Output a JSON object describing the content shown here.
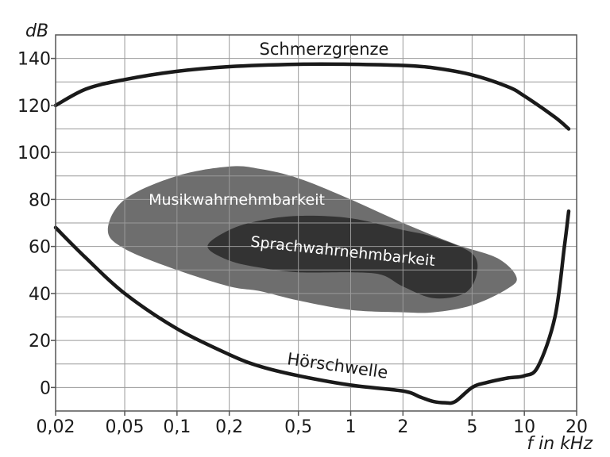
{
  "chart_data": {
    "type": "area",
    "xscale": "log",
    "xlabel": "f in kHz",
    "ylabel": "dB",
    "xlim": [
      0.02,
      20
    ],
    "ylim": [
      -10,
      150
    ],
    "grid": true,
    "x_ticks": [
      0.02,
      0.05,
      0.1,
      0.2,
      0.5,
      1,
      2,
      5,
      10,
      20
    ],
    "x_tick_labels": [
      "0,02",
      "0,05",
      "0,1",
      "0,2",
      "0,5",
      "1",
      "2",
      "5",
      "10",
      "20"
    ],
    "y_ticks": [
      0,
      20,
      40,
      60,
      80,
      100,
      120,
      140
    ],
    "y_tick_labels": [
      "0",
      "20",
      "40",
      "60",
      "80",
      "100",
      "120",
      "140"
    ],
    "series": [
      {
        "name": "Schmerzgrenze",
        "kind": "line",
        "x": [
          0.02,
          0.03,
          0.05,
          0.1,
          0.2,
          0.5,
          1,
          2,
          3,
          5,
          8,
          10,
          15,
          18
        ],
        "y": [
          120,
          127,
          131,
          134.5,
          136.5,
          137.5,
          137.5,
          137,
          136,
          133,
          128,
          124,
          115,
          110
        ]
      },
      {
        "name": "Hörschwelle",
        "kind": "line",
        "x": [
          0.02,
          0.03,
          0.05,
          0.1,
          0.2,
          0.3,
          0.5,
          1,
          2,
          2.5,
          3,
          3.5,
          4,
          5,
          6,
          8,
          10,
          12,
          15,
          17,
          18
        ],
        "y": [
          68,
          55,
          40,
          25,
          14,
          9,
          5,
          1,
          -1.5,
          -4,
          -6,
          -6.5,
          -6,
          0,
          2,
          4,
          5,
          9,
          30,
          60,
          75
        ]
      },
      {
        "name": "Musikwahrnehmbarkeit",
        "kind": "region",
        "x": [
          0.04,
          0.05,
          0.1,
          0.2,
          0.3,
          0.5,
          1,
          2,
          4,
          7,
          9,
          8,
          5,
          3,
          2,
          1,
          0.5,
          0.3,
          0.2,
          0.1,
          0.05,
          0.04
        ],
        "y": [
          67,
          80,
          90,
          94,
          93,
          89,
          80,
          70,
          61,
          55,
          47,
          42,
          35,
          32,
          32,
          33,
          37,
          41,
          43,
          50,
          59,
          67
        ]
      },
      {
        "name": "Sprachwahrnehmbarkeit",
        "kind": "region",
        "x": [
          0.15,
          0.2,
          0.3,
          0.5,
          1,
          2,
          3,
          5,
          5.3,
          4.5,
          3,
          2,
          1.5,
          1,
          0.5,
          0.3,
          0.2,
          0.15
        ],
        "y": [
          60,
          67,
          71,
          73,
          72,
          67,
          64,
          57,
          48,
          40,
          38,
          43,
          48,
          49,
          49,
          51,
          54,
          60
        ]
      }
    ]
  }
}
